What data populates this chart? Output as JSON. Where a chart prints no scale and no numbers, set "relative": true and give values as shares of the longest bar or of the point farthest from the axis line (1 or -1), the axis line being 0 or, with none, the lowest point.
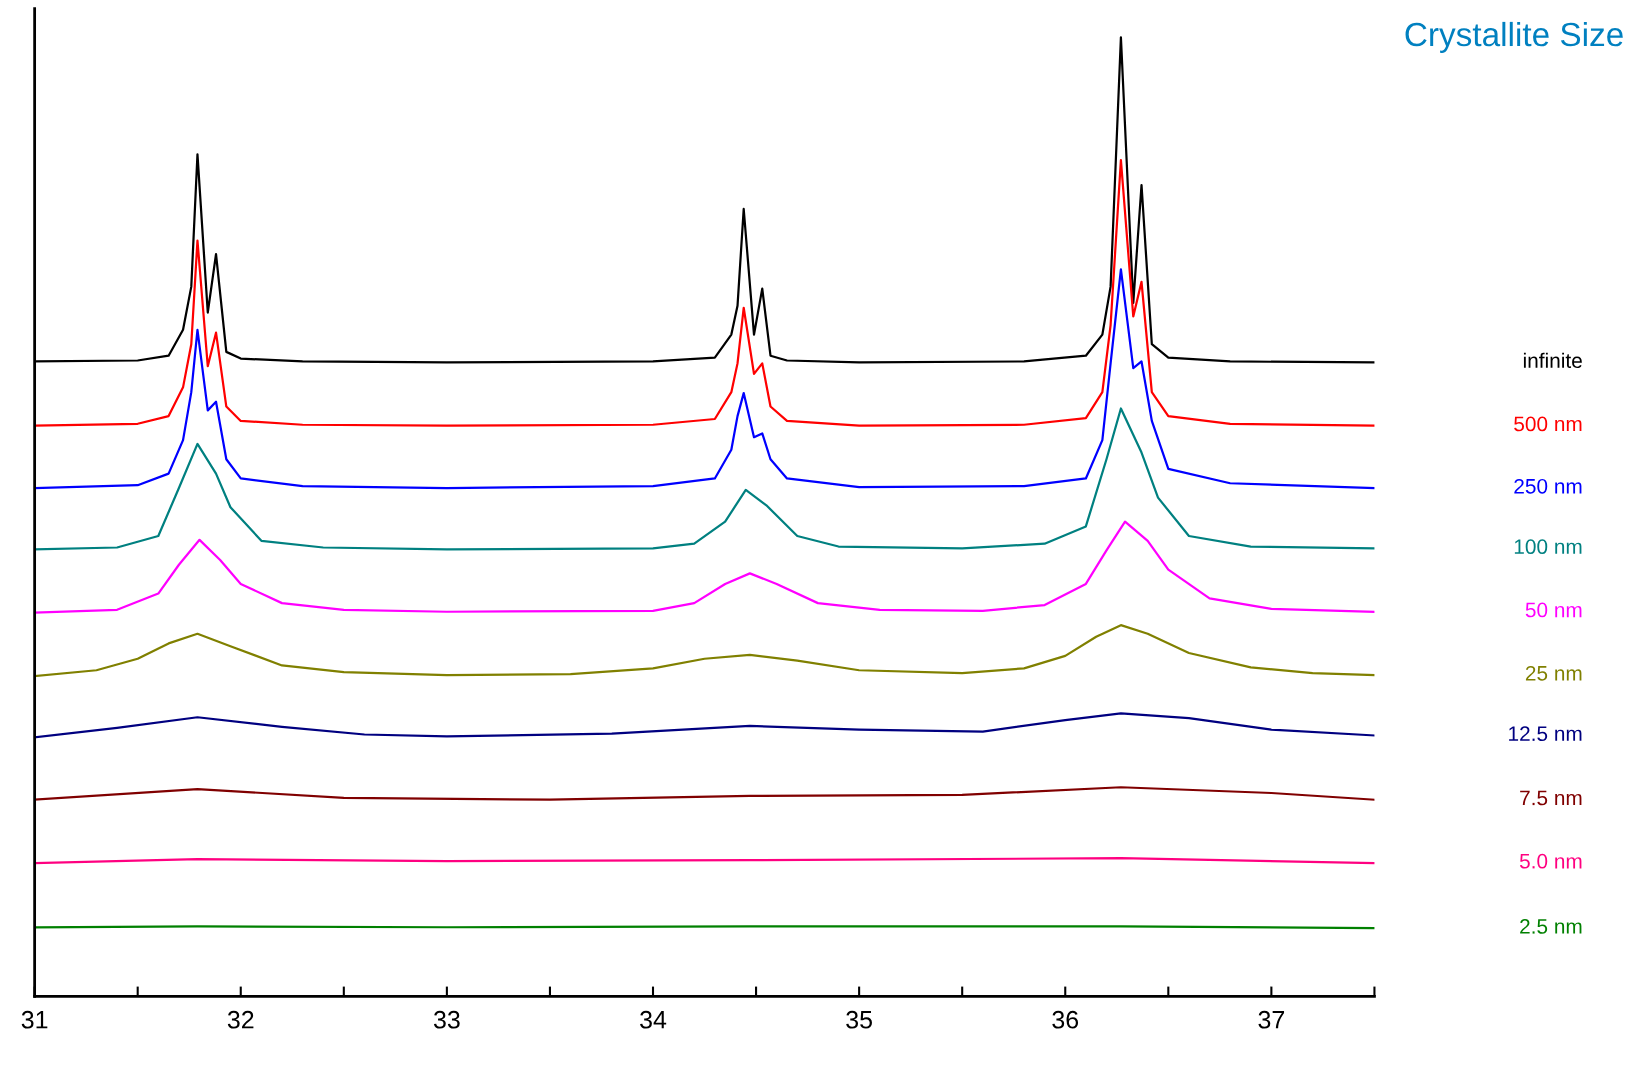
{
  "chart_data": {
    "type": "line",
    "title": "Crystallite Size",
    "relative": true,
    "xlim": [
      31,
      37.5
    ],
    "xticks": [
      31,
      {
        "value": 31.5,
        "label": null
      },
      32,
      {
        "value": 32.5,
        "label": null
      },
      33,
      {
        "value": 33.5,
        "label": null
      },
      34,
      {
        "value": 34.5,
        "label": null
      },
      35,
      {
        "value": 35.5,
        "label": null
      },
      36,
      {
        "value": 36.5,
        "label": null
      },
      37,
      {
        "value": 37.5,
        "label": null
      }
    ],
    "tick_labels": "x",
    "grid": false,
    "legend": false,
    "marker": "none",
    "line_style": "solid",
    "series": [
      {
        "name": "infinite",
        "color": "#000000",
        "x": [
          31.0,
          31.5,
          31.65,
          31.72,
          31.76,
          31.79,
          31.84,
          31.88,
          31.93,
          32.0,
          32.3,
          33.0,
          34.0,
          34.3,
          34.38,
          34.41,
          34.44,
          34.49,
          34.53,
          34.57,
          34.65,
          35.0,
          35.8,
          36.1,
          36.18,
          36.22,
          36.27,
          36.33,
          36.37,
          36.42,
          36.5,
          36.8,
          37.5
        ],
        "values": [
          0.662,
          0.663,
          0.668,
          0.695,
          0.74,
          0.878,
          0.713,
          0.774,
          0.672,
          0.665,
          0.662,
          0.661,
          0.662,
          0.666,
          0.69,
          0.72,
          0.821,
          0.69,
          0.738,
          0.668,
          0.663,
          0.661,
          0.662,
          0.668,
          0.69,
          0.74,
          1.0,
          0.723,
          0.846,
          0.68,
          0.666,
          0.662,
          0.661
        ]
      },
      {
        "name": "500 nm",
        "color": "#ff0000",
        "x": [
          31.0,
          31.5,
          31.65,
          31.72,
          31.76,
          31.79,
          31.84,
          31.88,
          31.93,
          32.0,
          32.3,
          33.0,
          34.0,
          34.3,
          34.38,
          34.41,
          34.44,
          34.49,
          34.53,
          34.57,
          34.65,
          35.0,
          35.8,
          36.1,
          36.18,
          36.22,
          36.27,
          36.33,
          36.37,
          36.42,
          36.5,
          36.8,
          37.5
        ],
        "values": [
          0.595,
          0.597,
          0.605,
          0.635,
          0.68,
          0.788,
          0.657,
          0.692,
          0.615,
          0.6,
          0.596,
          0.595,
          0.596,
          0.602,
          0.63,
          0.66,
          0.718,
          0.649,
          0.66,
          0.615,
          0.6,
          0.595,
          0.596,
          0.603,
          0.63,
          0.7,
          0.872,
          0.709,
          0.745,
          0.63,
          0.605,
          0.597,
          0.595
        ]
      },
      {
        "name": "250 nm",
        "color": "#0000ff",
        "x": [
          31.0,
          31.5,
          31.65,
          31.72,
          31.76,
          31.79,
          31.84,
          31.88,
          31.93,
          32.0,
          32.3,
          33.0,
          34.0,
          34.3,
          34.38,
          34.41,
          34.44,
          34.49,
          34.53,
          34.57,
          34.65,
          35.0,
          35.8,
          36.1,
          36.18,
          36.22,
          36.27,
          36.33,
          36.37,
          36.42,
          36.5,
          36.8,
          37.5
        ],
        "values": [
          0.53,
          0.533,
          0.545,
          0.58,
          0.63,
          0.695,
          0.611,
          0.62,
          0.56,
          0.54,
          0.532,
          0.53,
          0.532,
          0.54,
          0.57,
          0.605,
          0.629,
          0.583,
          0.587,
          0.56,
          0.54,
          0.531,
          0.532,
          0.54,
          0.58,
          0.66,
          0.758,
          0.655,
          0.662,
          0.6,
          0.55,
          0.535,
          0.53
        ]
      },
      {
        "name": "100 nm",
        "color": "#008080",
        "x": [
          31.0,
          31.4,
          31.6,
          31.7,
          31.79,
          31.88,
          31.95,
          32.1,
          32.4,
          33.0,
          34.0,
          34.2,
          34.35,
          34.45,
          34.55,
          34.7,
          34.9,
          35.5,
          35.9,
          36.1,
          36.2,
          36.27,
          36.37,
          36.45,
          36.6,
          36.9,
          37.5
        ],
        "values": [
          0.466,
          0.468,
          0.48,
          0.53,
          0.576,
          0.545,
          0.51,
          0.475,
          0.468,
          0.466,
          0.467,
          0.472,
          0.495,
          0.528,
          0.512,
          0.48,
          0.469,
          0.467,
          0.472,
          0.49,
          0.56,
          0.613,
          0.567,
          0.52,
          0.48,
          0.469,
          0.467
        ]
      },
      {
        "name": "50 nm",
        "color": "#ff00ff",
        "x": [
          31.0,
          31.4,
          31.6,
          31.7,
          31.8,
          31.9,
          32.0,
          32.2,
          32.5,
          33.0,
          34.0,
          34.2,
          34.35,
          34.47,
          34.6,
          34.8,
          35.1,
          35.6,
          35.9,
          36.1,
          36.2,
          36.29,
          36.4,
          36.5,
          36.7,
          37.0,
          37.5
        ],
        "values": [
          0.4,
          0.403,
          0.42,
          0.45,
          0.476,
          0.455,
          0.43,
          0.41,
          0.403,
          0.401,
          0.402,
          0.41,
          0.43,
          0.441,
          0.43,
          0.41,
          0.403,
          0.402,
          0.408,
          0.43,
          0.465,
          0.495,
          0.475,
          0.445,
          0.415,
          0.404,
          0.401
        ]
      },
      {
        "name": "25 nm",
        "color": "#808000",
        "x": [
          31.0,
          31.3,
          31.5,
          31.65,
          31.79,
          31.95,
          32.2,
          32.5,
          33.0,
          33.6,
          34.0,
          34.25,
          34.47,
          34.7,
          35.0,
          35.5,
          35.8,
          36.0,
          36.15,
          36.27,
          36.4,
          36.6,
          36.9,
          37.2,
          37.5
        ],
        "values": [
          0.334,
          0.34,
          0.352,
          0.368,
          0.378,
          0.365,
          0.345,
          0.338,
          0.335,
          0.336,
          0.342,
          0.352,
          0.356,
          0.35,
          0.34,
          0.337,
          0.342,
          0.355,
          0.375,
          0.387,
          0.378,
          0.358,
          0.343,
          0.337,
          0.335
        ]
      },
      {
        "name": "12.5 nm",
        "color": "#000080",
        "x": [
          31.0,
          31.4,
          31.79,
          32.2,
          32.6,
          33.0,
          33.8,
          34.47,
          35.0,
          35.6,
          36.0,
          36.27,
          36.6,
          37.0,
          37.5
        ],
        "values": [
          0.27,
          0.28,
          0.291,
          0.281,
          0.273,
          0.271,
          0.274,
          0.282,
          0.278,
          0.276,
          0.288,
          0.295,
          0.29,
          0.278,
          0.272
        ]
      },
      {
        "name": "7.5 nm",
        "color": "#800000",
        "x": [
          31.0,
          31.79,
          32.5,
          33.5,
          34.47,
          35.5,
          36.27,
          37.0,
          37.5
        ],
        "values": [
          0.205,
          0.216,
          0.207,
          0.205,
          0.209,
          0.21,
          0.218,
          0.212,
          0.205
        ]
      },
      {
        "name": "5.0 nm",
        "color": "#ff0080",
        "x": [
          31.0,
          31.79,
          33.0,
          34.47,
          36.27,
          37.5
        ],
        "values": [
          0.139,
          0.143,
          0.141,
          0.142,
          0.144,
          0.139
        ]
      },
      {
        "name": "2.5 nm",
        "color": "#008000",
        "x": [
          31.0,
          31.79,
          33.0,
          34.47,
          36.27,
          37.5
        ],
        "values": [
          0.072,
          0.073,
          0.072,
          0.073,
          0.073,
          0.071
        ]
      }
    ]
  }
}
